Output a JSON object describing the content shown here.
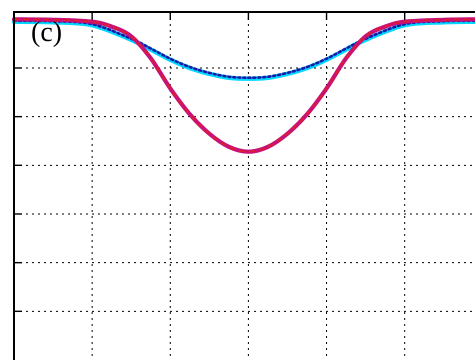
{
  "chart_data": {
    "type": "line",
    "panel_label": "(c)",
    "title": "",
    "xlabel": "",
    "ylabel": "",
    "grid": true,
    "xlim": [
      -3,
      2.9
    ],
    "ylim": [
      -7,
      0.15
    ],
    "xticks": [
      -2,
      -1,
      0,
      1,
      2
    ],
    "yticks": [
      -1,
      -2,
      -3,
      -4,
      -5,
      -6
    ],
    "series": [
      {
        "style": "cyan-thick",
        "color": "#00d8ff",
        "x": [
          -3,
          -2.5,
          -2,
          -1.5,
          -1.25,
          -1,
          -0.75,
          -0.5,
          -0.25,
          0,
          0.25,
          0.5,
          0.75,
          1,
          1.25,
          1.5,
          2,
          2.5,
          2.9
        ],
        "y": [
          -0.05,
          -0.06,
          -0.12,
          -0.42,
          -0.62,
          -0.83,
          -1.0,
          -1.12,
          -1.2,
          -1.22,
          -1.2,
          -1.12,
          -1.0,
          -0.83,
          -0.62,
          -0.42,
          -0.12,
          -0.06,
          -0.05
        ]
      },
      {
        "style": "blue-dotted",
        "color": "#1a1aa8",
        "x": [
          -3,
          -2.5,
          -2,
          -1.5,
          -1.25,
          -1,
          -0.75,
          -0.5,
          -0.25,
          0,
          0.25,
          0.5,
          0.75,
          1,
          1.25,
          1.5,
          2,
          2.5,
          2.9
        ],
        "y": [
          -0.03,
          -0.04,
          -0.1,
          -0.4,
          -0.6,
          -0.81,
          -0.98,
          -1.1,
          -1.18,
          -1.2,
          -1.18,
          -1.1,
          -0.98,
          -0.81,
          -0.6,
          -0.4,
          -0.1,
          -0.04,
          -0.03
        ]
      },
      {
        "style": "magenta-solid",
        "color": "#c8107a",
        "x": [
          -3,
          -2.5,
          -2,
          -1.75,
          -1.5,
          -1.25,
          -1,
          -0.75,
          -0.5,
          -0.25,
          0,
          0.25,
          0.5,
          0.75,
          1,
          1.25,
          1.5,
          1.75,
          2,
          2.5,
          2.9
        ],
        "y": [
          0,
          -0.01,
          -0.05,
          -0.15,
          -0.35,
          -0.8,
          -1.42,
          -1.95,
          -2.35,
          -2.62,
          -2.72,
          -2.62,
          -2.35,
          -1.95,
          -1.42,
          -0.8,
          -0.35,
          -0.15,
          -0.05,
          -0.01,
          0
        ]
      },
      {
        "style": "red-dashed",
        "color": "#e02020",
        "x": [
          -3,
          -2.5,
          -2,
          -1.75,
          -1.5,
          -1.25,
          -1,
          -0.75,
          -0.5,
          -0.25,
          0,
          0.25,
          0.5,
          0.75,
          1,
          1.25,
          1.5,
          1.75,
          2,
          2.5,
          2.9
        ],
        "y": [
          0,
          -0.01,
          -0.05,
          -0.15,
          -0.35,
          -0.8,
          -1.42,
          -1.95,
          -2.35,
          -2.62,
          -2.72,
          -2.62,
          -2.35,
          -1.95,
          -1.42,
          -0.8,
          -0.35,
          -0.15,
          -0.05,
          -0.01,
          0
        ]
      }
    ]
  }
}
